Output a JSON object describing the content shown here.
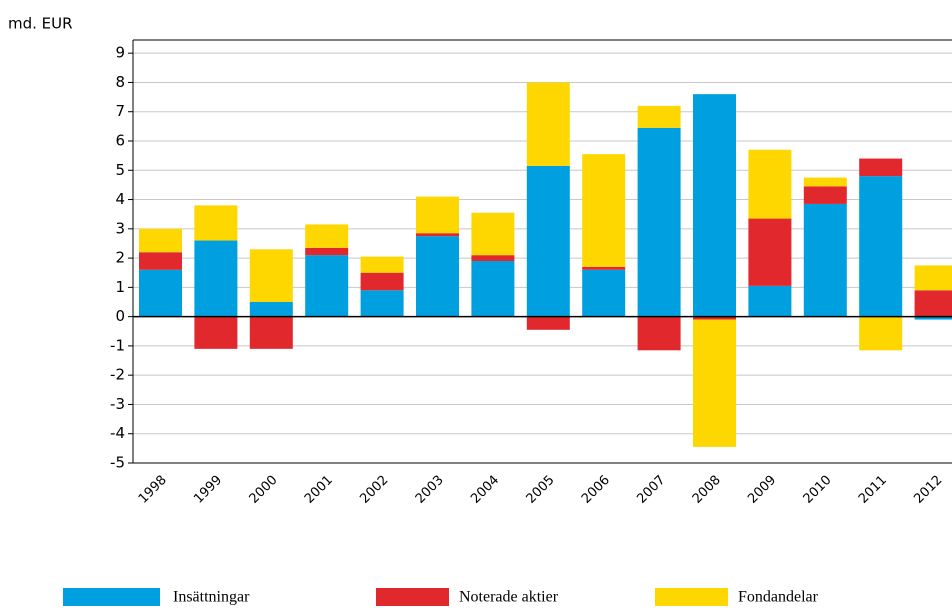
{
  "chart_data": {
    "type": "bar",
    "stacked": true,
    "y_axis_label": "md. EUR",
    "categories": [
      "1998",
      "1999",
      "2000",
      "2001",
      "2002",
      "2003",
      "2004",
      "2005",
      "2006",
      "2007",
      "2008",
      "2009",
      "2010",
      "2011",
      "2012"
    ],
    "series": [
      {
        "name": "Insättningar",
        "color": "#00a0e0",
        "values": [
          1.6,
          2.6,
          0.5,
          2.1,
          0.9,
          2.75,
          1.9,
          5.15,
          1.6,
          6.45,
          7.6,
          1.05,
          3.85,
          4.8,
          -0.1
        ]
      },
      {
        "name": "Noterade aktier",
        "color": "#e0282d",
        "values": [
          0.6,
          -1.1,
          -1.1,
          0.25,
          0.6,
          0.1,
          0.2,
          -0.45,
          0.1,
          -1.15,
          -0.1,
          2.3,
          0.6,
          0.6,
          0.9
        ]
      },
      {
        "name": "Fondandelar",
        "color": "#ffd700",
        "values": [
          0.8,
          1.2,
          1.8,
          0.8,
          0.55,
          1.25,
          1.45,
          2.85,
          3.85,
          0.75,
          -4.35,
          2.35,
          0.3,
          -1.15,
          0.85
        ]
      }
    ],
    "ylim": [
      -5,
      9.45
    ],
    "yticks": [
      9,
      8,
      7,
      6,
      5,
      4,
      3,
      2,
      1,
      0,
      -1,
      -2,
      -3,
      -4,
      -5
    ]
  }
}
